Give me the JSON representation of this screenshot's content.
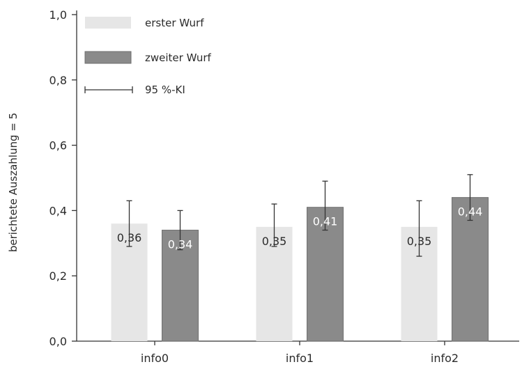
{
  "chart_data": {
    "type": "bar",
    "categories": [
      "info0",
      "info1",
      "info2"
    ],
    "series": [
      {
        "name": "erster Wurf",
        "values": [
          0.36,
          0.35,
          0.35
        ],
        "ci_low": [
          0.29,
          0.29,
          0.26
        ],
        "ci_high": [
          0.43,
          0.42,
          0.43
        ],
        "color": "#e6e6e6",
        "label_color": "#2b2b2b"
      },
      {
        "name": "zweiter Wurf",
        "values": [
          0.34,
          0.41,
          0.44
        ],
        "ci_low": [
          0.28,
          0.34,
          0.37
        ],
        "ci_high": [
          0.4,
          0.49,
          0.51
        ],
        "color": "#8a8a8a",
        "label_color": "#ffffff"
      }
    ],
    "data_labels": [
      [
        "0,36",
        "0,35",
        "0,35"
      ],
      [
        "0,34",
        "0,41",
        "0,44"
      ]
    ],
    "ci_legend_label": "95 %-KI",
    "xlabel": "",
    "ylabel": "berichtete Auszahlung = 5",
    "ylim": [
      0,
      1.0
    ],
    "yticks": [
      0,
      0.2,
      0.4,
      0.6,
      0.8,
      1.0
    ],
    "ytick_labels": [
      "0,0",
      "0,2",
      "0,4",
      "0,6",
      "0,8",
      "1,0"
    ],
    "grid": false,
    "legend_position": "top-left"
  }
}
